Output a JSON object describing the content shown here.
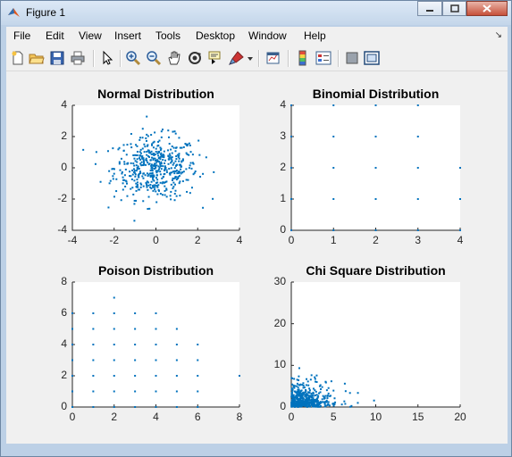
{
  "window": {
    "title": "Figure 1"
  },
  "menubar": {
    "items": [
      "File",
      "Edit",
      "View",
      "Insert",
      "Tools",
      "Desktop",
      "Window",
      "Help"
    ]
  },
  "toolbar": {
    "icons": [
      "new-figure-icon",
      "open-file-icon",
      "save-icon",
      "print-icon",
      "arrow-select-icon",
      "zoom-in-icon",
      "zoom-out-icon",
      "pan-hand-icon",
      "rotate-3d-icon",
      "data-cursor-icon",
      "brush-icon",
      "brush-dropdown-icon",
      "link-plot-icon",
      "colorbar-icon",
      "legend-icon",
      "hide-plot-tools-icon",
      "show-plot-tools-icon"
    ]
  },
  "chart_data": [
    {
      "type": "scatter",
      "title": "Normal Distribution",
      "xlim": [
        -4,
        4
      ],
      "ylim": [
        -4,
        4
      ],
      "xticks": [
        "-4",
        "-2",
        "0",
        "2",
        "4"
      ],
      "yticks": [
        "4",
        "2",
        "0",
        "-2",
        "-4"
      ],
      "color": "#0072bd",
      "points": []
    },
    {
      "type": "scatter",
      "title": "Binomial Distribution",
      "xlim": [
        0,
        4
      ],
      "ylim": [
        0,
        4
      ],
      "xticks": [
        "0",
        "1",
        "2",
        "3",
        "4"
      ],
      "yticks": [
        "4",
        "3",
        "2",
        "1",
        "0"
      ],
      "color": "#0072bd",
      "points": [
        [
          0,
          0
        ],
        [
          0,
          1
        ],
        [
          0,
          2
        ],
        [
          0,
          3
        ],
        [
          0,
          4
        ],
        [
          1,
          0
        ],
        [
          1,
          1
        ],
        [
          1,
          2
        ],
        [
          1,
          3
        ],
        [
          1,
          4
        ],
        [
          2,
          0
        ],
        [
          2,
          1
        ],
        [
          2,
          2
        ],
        [
          2,
          3
        ],
        [
          2,
          4
        ],
        [
          3,
          0
        ],
        [
          3,
          1
        ],
        [
          3,
          2
        ],
        [
          3,
          3
        ],
        [
          3,
          4
        ],
        [
          4,
          0
        ],
        [
          4,
          1
        ],
        [
          4,
          2
        ]
      ]
    },
    {
      "type": "scatter",
      "title": "Poison Distribution",
      "xlim": [
        0,
        8
      ],
      "ylim": [
        0,
        8
      ],
      "xticks": [
        "0",
        "2",
        "4",
        "6",
        "8"
      ],
      "yticks": [
        "8",
        "6",
        "4",
        "2",
        "0"
      ],
      "color": "#0072bd",
      "points": [
        [
          0,
          0
        ],
        [
          0,
          1
        ],
        [
          0,
          2
        ],
        [
          0,
          3
        ],
        [
          0,
          4
        ],
        [
          0,
          5
        ],
        [
          0,
          6
        ],
        [
          1,
          0
        ],
        [
          1,
          1
        ],
        [
          1,
          2
        ],
        [
          1,
          3
        ],
        [
          1,
          4
        ],
        [
          1,
          5
        ],
        [
          1,
          6
        ],
        [
          2,
          0
        ],
        [
          2,
          1
        ],
        [
          2,
          2
        ],
        [
          2,
          3
        ],
        [
          2,
          4
        ],
        [
          2,
          5
        ],
        [
          2,
          6
        ],
        [
          2,
          7
        ],
        [
          3,
          0
        ],
        [
          3,
          1
        ],
        [
          3,
          2
        ],
        [
          3,
          3
        ],
        [
          3,
          4
        ],
        [
          3,
          5
        ],
        [
          3,
          6
        ],
        [
          4,
          0
        ],
        [
          4,
          1
        ],
        [
          4,
          2
        ],
        [
          4,
          3
        ],
        [
          4,
          4
        ],
        [
          4,
          5
        ],
        [
          4,
          6
        ],
        [
          5,
          0
        ],
        [
          5,
          1
        ],
        [
          5,
          2
        ],
        [
          5,
          3
        ],
        [
          5,
          4
        ],
        [
          5,
          5
        ],
        [
          6,
          0
        ],
        [
          6,
          1
        ],
        [
          6,
          2
        ],
        [
          6,
          3
        ],
        [
          6,
          4
        ],
        [
          8,
          2
        ]
      ]
    },
    {
      "type": "scatter",
      "title": "Chi Square Distribution",
      "xlim": [
        0,
        20
      ],
      "ylim": [
        0,
        30
      ],
      "xticks": [
        "0",
        "5",
        "10",
        "15",
        "20"
      ],
      "yticks": [
        "30",
        "20",
        "10",
        "0"
      ],
      "color": "#0072bd",
      "points": []
    }
  ]
}
